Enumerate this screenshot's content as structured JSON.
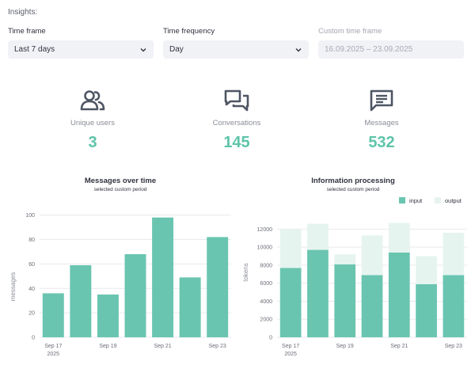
{
  "section_title": "Insights:",
  "filters": {
    "time_frame": {
      "label": "Time frame",
      "value": "Last 7 days"
    },
    "time_frequency": {
      "label": "Time frequency",
      "value": "Day"
    },
    "custom_time_frame": {
      "label": "Custom time frame",
      "value": "16.09.2025 – 23.09.2025"
    }
  },
  "metrics": {
    "unique_users": {
      "label": "Unique users",
      "value": "3",
      "icon": "users-icon"
    },
    "conversations": {
      "label": "Conversations",
      "value": "145",
      "icon": "chat-bubbles-icon"
    },
    "messages": {
      "label": "Messages",
      "value": "532",
      "icon": "message-icon"
    }
  },
  "colors": {
    "accent": "#5ec4aa",
    "bar": "#6ac5b0",
    "bar_light": "#e6f4f0",
    "text_muted": "#8a8d97"
  },
  "chart_data": [
    {
      "type": "bar",
      "title": "Messages over time",
      "subtitle": "selected custom period",
      "xlabel": "",
      "ylabel": "messages",
      "x": [
        "2025-09-17",
        "2025-09-18",
        "2025-09-19",
        "2025-09-20",
        "2025-09-21",
        "2025-09-22",
        "2025-09-23"
      ],
      "values": [
        36,
        59,
        35,
        68,
        98,
        49,
        82
      ],
      "x_ticks": [
        "Sep 17",
        "Sep 19",
        "Sep 21",
        "Sep 23"
      ],
      "x_tick_year": "2025",
      "y_ticks": [
        0,
        20,
        40,
        60,
        80,
        100
      ],
      "ylim": [
        0,
        103
      ],
      "grid": true
    },
    {
      "type": "bar",
      "stacked": true,
      "title": "Information processing",
      "subtitle": "selected custom period",
      "xlabel": "",
      "ylabel": "tokens",
      "x": [
        "2025-09-17",
        "2025-09-18",
        "2025-09-19",
        "2025-09-20",
        "2025-09-21",
        "2025-09-22",
        "2025-09-23"
      ],
      "series": [
        {
          "name": "input",
          "values": [
            7700,
            9700,
            8100,
            6900,
            9400,
            5900,
            6900
          ]
        },
        {
          "name": "output",
          "values": [
            4300,
            2900,
            1100,
            4400,
            3300,
            3100,
            4700
          ]
        }
      ],
      "x_ticks": [
        "Sep 17",
        "Sep 19",
        "Sep 21",
        "Sep 23"
      ],
      "x_tick_year": "2025",
      "y_ticks": [
        0,
        2000,
        4000,
        6000,
        8000,
        10000,
        12000
      ],
      "ylim": [
        0,
        13000
      ],
      "legend": "top-right",
      "grid": true
    }
  ]
}
